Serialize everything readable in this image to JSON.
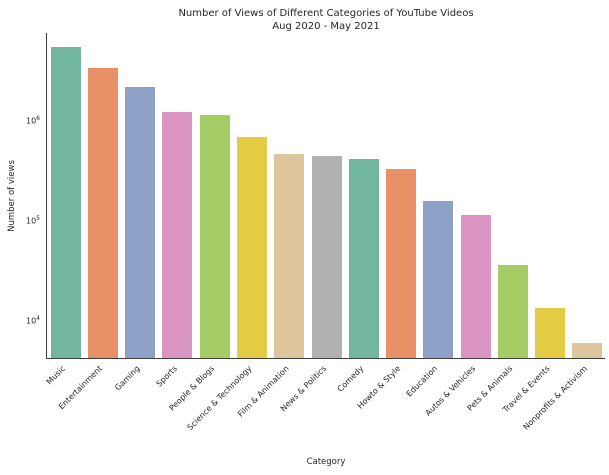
{
  "title": {
    "line1": "Number of Views of Different Categories of YouTube Videos",
    "line2": "Aug 2020 - May 2021"
  },
  "chart_data": {
    "type": "bar",
    "title": "Number of Views of Different Categories of YouTube Videos",
    "subtitle": "Aug 2020 - May 2021",
    "xlabel": "Category",
    "ylabel": "Number of views",
    "y_scale": "log",
    "ylim": [
      4300,
      7800000
    ],
    "yticks": [
      "10^4",
      "10^5",
      "10^6"
    ],
    "grid": false,
    "legend": false,
    "categories": [
      "Music",
      "Entertainment",
      "Gaming",
      "Sports",
      "People & Blogs",
      "Science & Technology",
      "Film & Animation",
      "News & Politics",
      "Comedy",
      "Howto & Style",
      "Education",
      "Autos & Vehicles",
      "Pets & Animals",
      "Travel & Events",
      "Nonprofits & Activism"
    ],
    "values": [
      5500000,
      3400000,
      2200000,
      1250000,
      1150000,
      700000,
      470000,
      450000,
      420000,
      330000,
      160000,
      115000,
      37000,
      13500,
      6100
    ],
    "palette": [
      "#72b5a1",
      "#e99066",
      "#8da0c5",
      "#d994c1",
      "#a5cd65",
      "#e3cc43",
      "#ddc69b",
      "#b1b1b1"
    ],
    "spine_color": "#3d3d3d"
  }
}
